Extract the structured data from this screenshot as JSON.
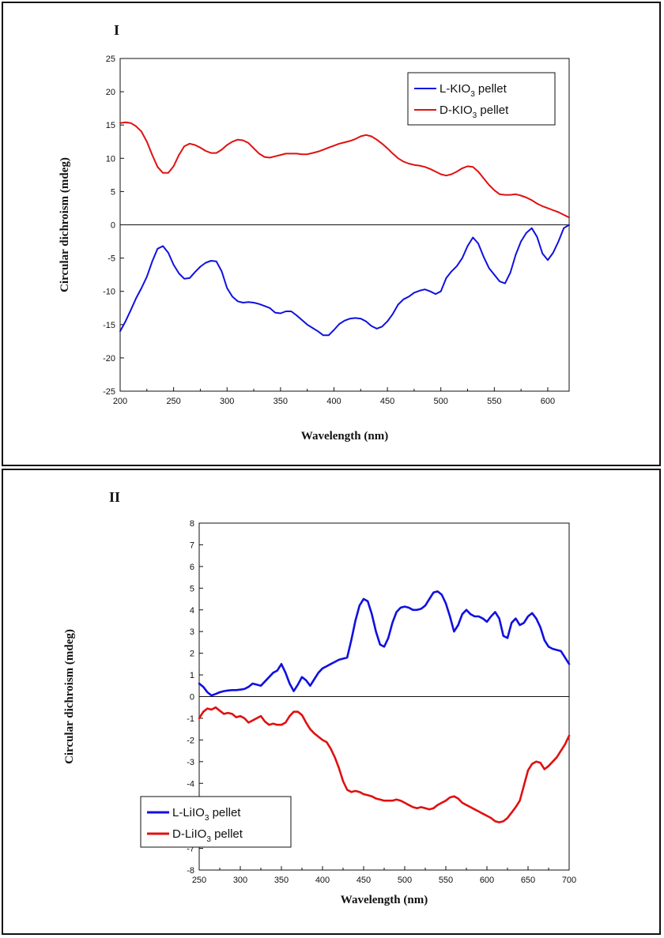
{
  "chart_data": [
    {
      "type": "line",
      "panel_label": "I",
      "xlabel": "Wavelength (nm)",
      "ylabel": "Circular dichroism (mdeg)",
      "xlim": [
        200,
        620
      ],
      "ylim": [
        -25,
        25
      ],
      "xticks": [
        200,
        250,
        300,
        350,
        400,
        450,
        500,
        550,
        600
      ],
      "yticks": [
        -25,
        -20,
        -15,
        -10,
        -5,
        0,
        5,
        10,
        15,
        20,
        25
      ],
      "zero_line": true,
      "legend_position": "top-right",
      "series": [
        {
          "name": "L-KIO₃ pellet",
          "color": "#1010e0",
          "x": [
            200,
            205,
            210,
            215,
            220,
            225,
            230,
            235,
            240,
            245,
            250,
            255,
            260,
            265,
            270,
            275,
            280,
            285,
            290,
            295,
            300,
            305,
            310,
            315,
            320,
            325,
            330,
            335,
            340,
            345,
            350,
            355,
            360,
            365,
            370,
            375,
            380,
            385,
            390,
            395,
            400,
            405,
            410,
            415,
            420,
            425,
            430,
            435,
            440,
            445,
            450,
            455,
            460,
            465,
            470,
            475,
            480,
            485,
            490,
            495,
            500,
            505,
            510,
            515,
            520,
            525,
            530,
            535,
            540,
            545,
            550,
            555,
            560,
            565,
            570,
            575,
            580,
            585,
            590,
            595,
            600,
            605,
            610,
            615,
            620
          ],
          "y": [
            -16,
            -14.5,
            -12.8,
            -11,
            -9.5,
            -7.8,
            -5.5,
            -3.6,
            -3.2,
            -4.2,
            -6,
            -7.3,
            -8.1,
            -8,
            -7.1,
            -6.3,
            -5.7,
            -5.4,
            -5.5,
            -7,
            -9.5,
            -10.8,
            -11.5,
            -11.7,
            -11.6,
            -11.7,
            -11.9,
            -12.2,
            -12.5,
            -13.2,
            -13.3,
            -13,
            -13,
            -13.6,
            -14.3,
            -15,
            -15.5,
            -16,
            -16.6,
            -16.6,
            -15.8,
            -14.9,
            -14.4,
            -14.1,
            -14,
            -14.1,
            -14.5,
            -15.2,
            -15.6,
            -15.3,
            -14.5,
            -13.4,
            -12,
            -11.2,
            -10.8,
            -10.2,
            -9.9,
            -9.7,
            -10,
            -10.4,
            -10,
            -8,
            -7,
            -6.2,
            -5,
            -3.2,
            -1.9,
            -2.8,
            -4.8,
            -6.5,
            -7.5,
            -8.5,
            -8.8,
            -7.2,
            -4.5,
            -2.5,
            -1.2,
            -0.5,
            -1.8,
            -4.3,
            -5.3,
            -4.2,
            -2.5,
            -0.5,
            0
          ]
        },
        {
          "name": "D-KIO₃ pellet",
          "color": "#e01010",
          "x": [
            200,
            205,
            210,
            215,
            220,
            225,
            230,
            235,
            240,
            245,
            250,
            255,
            260,
            265,
            270,
            275,
            280,
            285,
            290,
            295,
            300,
            305,
            310,
            315,
            320,
            325,
            330,
            335,
            340,
            345,
            350,
            355,
            360,
            365,
            370,
            375,
            380,
            385,
            390,
            395,
            400,
            405,
            410,
            415,
            420,
            425,
            430,
            435,
            440,
            445,
            450,
            455,
            460,
            465,
            470,
            475,
            480,
            485,
            490,
            495,
            500,
            505,
            510,
            515,
            520,
            525,
            530,
            535,
            540,
            545,
            550,
            555,
            560,
            565,
            570,
            575,
            580,
            585,
            590,
            595,
            600,
            605,
            610,
            615,
            620
          ],
          "y": [
            15.3,
            15.4,
            15.3,
            14.8,
            14,
            12.5,
            10.5,
            8.7,
            7.8,
            7.8,
            8.8,
            10.5,
            11.8,
            12.2,
            12,
            11.6,
            11.1,
            10.8,
            10.8,
            11.3,
            12,
            12.5,
            12.8,
            12.7,
            12.3,
            11.5,
            10.7,
            10.2,
            10.1,
            10.3,
            10.5,
            10.7,
            10.7,
            10.7,
            10.6,
            10.6,
            10.8,
            11,
            11.3,
            11.6,
            11.9,
            12.2,
            12.4,
            12.6,
            12.9,
            13.3,
            13.5,
            13.3,
            12.8,
            12.2,
            11.5,
            10.7,
            10,
            9.5,
            9.2,
            9,
            8.9,
            8.7,
            8.4,
            8,
            7.6,
            7.4,
            7.6,
            8,
            8.5,
            8.8,
            8.7,
            8,
            7,
            6,
            5.2,
            4.6,
            4.5,
            4.5,
            4.6,
            4.4,
            4.1,
            3.7,
            3.2,
            2.8,
            2.5,
            2.2,
            1.9,
            1.5,
            1.1
          ]
        }
      ]
    },
    {
      "type": "line",
      "panel_label": "II",
      "xlabel": "Wavelength (nm)",
      "ylabel": "Circular dichroism (mdeg)",
      "xlim": [
        250,
        700
      ],
      "ylim": [
        -8,
        8
      ],
      "xticks": [
        250,
        300,
        350,
        400,
        450,
        500,
        550,
        600,
        650,
        700
      ],
      "yticks": [
        -8,
        -7,
        -6,
        -5,
        -4,
        -3,
        -2,
        -1,
        0,
        1,
        2,
        3,
        4,
        5,
        6,
        7,
        8
      ],
      "zero_line": true,
      "legend_position": "bottom-left",
      "series": [
        {
          "name": "L-LiIO₃ pellet",
          "color": "#1010e0",
          "x": [
            250,
            255,
            260,
            265,
            270,
            275,
            280,
            285,
            290,
            295,
            300,
            305,
            310,
            315,
            320,
            325,
            330,
            335,
            340,
            345,
            350,
            355,
            360,
            365,
            370,
            375,
            380,
            385,
            390,
            395,
            400,
            405,
            410,
            415,
            420,
            425,
            430,
            435,
            440,
            445,
            450,
            455,
            460,
            465,
            470,
            475,
            480,
            485,
            490,
            495,
            500,
            505,
            510,
            515,
            520,
            525,
            530,
            535,
            540,
            545,
            550,
            555,
            560,
            565,
            570,
            575,
            580,
            585,
            590,
            595,
            600,
            605,
            610,
            615,
            620,
            625,
            630,
            635,
            640,
            645,
            650,
            655,
            660,
            665,
            670,
            675,
            680,
            685,
            690,
            695,
            700
          ],
          "y": [
            0.6,
            0.45,
            0.2,
            0.05,
            0.12,
            0.2,
            0.25,
            0.28,
            0.3,
            0.3,
            0.32,
            0.35,
            0.45,
            0.6,
            0.55,
            0.5,
            0.7,
            0.9,
            1.1,
            1.2,
            1.5,
            1.1,
            0.6,
            0.25,
            0.55,
            0.9,
            0.75,
            0.5,
            0.8,
            1.1,
            1.3,
            1.4,
            1.5,
            1.6,
            1.7,
            1.75,
            1.8,
            2.6,
            3.5,
            4.2,
            4.5,
            4.4,
            3.8,
            3,
            2.4,
            2.3,
            2.7,
            3.4,
            3.9,
            4.1,
            4.15,
            4.1,
            4,
            4,
            4.05,
            4.2,
            4.5,
            4.8,
            4.85,
            4.7,
            4.3,
            3.7,
            3,
            3.3,
            3.8,
            4,
            3.8,
            3.7,
            3.7,
            3.6,
            3.45,
            3.7,
            3.9,
            3.6,
            2.8,
            2.7,
            3.4,
            3.6,
            3.3,
            3.4,
            3.7,
            3.85,
            3.6,
            3.2,
            2.6,
            2.3,
            2.2,
            2.15,
            2.1,
            1.8,
            1.5
          ]
        },
        {
          "name": "D-LiIO₃ pellet",
          "color": "#e01010",
          "x": [
            250,
            255,
            260,
            265,
            270,
            275,
            280,
            285,
            290,
            295,
            300,
            305,
            310,
            315,
            320,
            325,
            330,
            335,
            340,
            345,
            350,
            355,
            360,
            365,
            370,
            375,
            380,
            385,
            390,
            395,
            400,
            405,
            410,
            415,
            420,
            425,
            430,
            435,
            440,
            445,
            450,
            455,
            460,
            465,
            470,
            475,
            480,
            485,
            490,
            495,
            500,
            505,
            510,
            515,
            520,
            525,
            530,
            535,
            540,
            545,
            550,
            555,
            560,
            565,
            570,
            575,
            580,
            585,
            590,
            595,
            600,
            605,
            610,
            615,
            620,
            625,
            630,
            635,
            640,
            645,
            650,
            655,
            660,
            665,
            670,
            675,
            680,
            685,
            690,
            695,
            700
          ],
          "y": [
            -1,
            -0.7,
            -0.55,
            -0.6,
            -0.5,
            -0.65,
            -0.8,
            -0.75,
            -0.8,
            -0.95,
            -0.9,
            -1,
            -1.2,
            -1.1,
            -1,
            -0.9,
            -1.15,
            -1.3,
            -1.25,
            -1.3,
            -1.3,
            -1.2,
            -0.9,
            -0.7,
            -0.7,
            -0.85,
            -1.2,
            -1.5,
            -1.7,
            -1.85,
            -2,
            -2.1,
            -2.4,
            -2.8,
            -3.3,
            -3.9,
            -4.3,
            -4.4,
            -4.35,
            -4.4,
            -4.5,
            -4.55,
            -4.6,
            -4.7,
            -4.75,
            -4.8,
            -4.8,
            -4.8,
            -4.75,
            -4.8,
            -4.9,
            -5,
            -5.1,
            -5.15,
            -5.1,
            -5.15,
            -5.2,
            -5.15,
            -5,
            -4.9,
            -4.8,
            -4.65,
            -4.6,
            -4.7,
            -4.9,
            -5,
            -5.1,
            -5.2,
            -5.3,
            -5.4,
            -5.5,
            -5.6,
            -5.75,
            -5.8,
            -5.75,
            -5.6,
            -5.35,
            -5.1,
            -4.8,
            -4.1,
            -3.4,
            -3.1,
            -3,
            -3.05,
            -3.35,
            -3.2,
            -3,
            -2.8,
            -2.5,
            -2.2,
            -1.8
          ]
        }
      ]
    }
  ]
}
